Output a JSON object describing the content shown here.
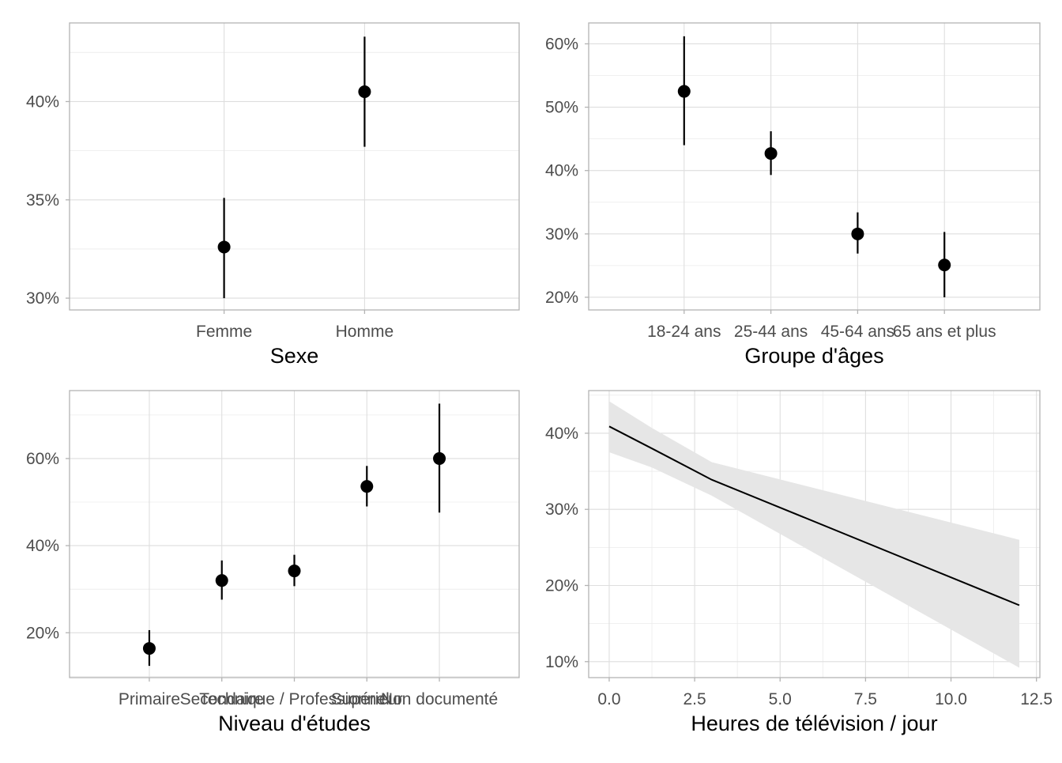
{
  "colors": {
    "mark": "#000000",
    "ribbon": "#e6e6e6",
    "grid": "#dedede",
    "frame": "#b3b3b3",
    "tick_text": "#4d4d4d"
  },
  "chart_data": [
    {
      "type": "scatter",
      "subtype": "point-with-errorbars",
      "xlabel": "Sexe",
      "categories": [
        "Femme",
        "Homme"
      ],
      "values": [
        32.6,
        40.5
      ],
      "lower": [
        30.0,
        37.7
      ],
      "upper": [
        35.1,
        43.3
      ],
      "yticks": [
        30,
        35,
        40
      ],
      "ytick_labels": [
        "30%",
        "35%",
        "40%"
      ],
      "ylim": [
        29.4,
        44.0
      ],
      "grid": true
    },
    {
      "type": "scatter",
      "subtype": "point-with-errorbars",
      "xlabel": "Groupe d'âges",
      "categories": [
        "18-24 ans",
        "25-44 ans",
        "45-64 ans",
        "65 ans et plus"
      ],
      "values": [
        52.5,
        42.7,
        30.0,
        25.1
      ],
      "lower": [
        44.0,
        39.3,
        26.9,
        20.0
      ],
      "upper": [
        61.2,
        46.2,
        33.4,
        30.3
      ],
      "yticks": [
        20,
        30,
        40,
        50,
        60
      ],
      "ytick_labels": [
        "20%",
        "30%",
        "40%",
        "50%",
        "60%"
      ],
      "ylim": [
        18.0,
        63.3
      ],
      "grid": true
    },
    {
      "type": "scatter",
      "subtype": "point-with-errorbars",
      "xlabel": "Niveau d'études",
      "categories": [
        "Primaire",
        "Secondaire",
        "Technique / Professionnel",
        "Supérieur",
        "Non documenté"
      ],
      "values": [
        16.4,
        32.0,
        34.2,
        53.6,
        60.0
      ],
      "lower": [
        12.4,
        27.6,
        30.7,
        49.0,
        47.6
      ],
      "upper": [
        20.6,
        36.6,
        37.9,
        58.3,
        72.6
      ],
      "yticks": [
        20,
        40,
        60
      ],
      "ytick_labels": [
        "20%",
        "40%",
        "60%"
      ],
      "ylim": [
        9.7,
        75.6
      ],
      "grid": true
    },
    {
      "type": "line",
      "subtype": "line-with-confidence-band",
      "xlabel": "Heures de télévision / jour",
      "x": [
        0,
        1.25,
        3,
        12
      ],
      "y": [
        40.9,
        38.0,
        33.9,
        17.4
      ],
      "lower": [
        37.5,
        35.5,
        31.8,
        9.2
      ],
      "upper": [
        44.2,
        40.7,
        36.2,
        26.0
      ],
      "xticks": [
        0,
        2.5,
        5,
        7.5,
        10,
        12.5
      ],
      "xtick_labels": [
        "0.0",
        "2.5",
        "5.0",
        "7.5",
        "10.0",
        "12.5"
      ],
      "yticks": [
        10,
        20,
        30,
        40
      ],
      "ytick_labels": [
        "10%",
        "20%",
        "30%",
        "40%"
      ],
      "xlim": [
        -0.6,
        12.6
      ],
      "ylim": [
        7.9,
        45.6
      ],
      "grid": true
    }
  ]
}
